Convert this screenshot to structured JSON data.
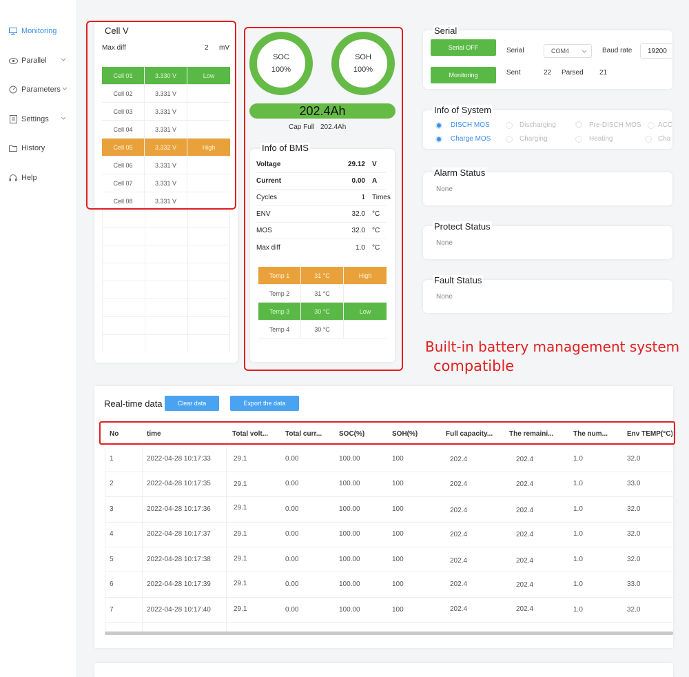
{
  "sidebar": {
    "items": [
      {
        "label": "Monitoring",
        "icon": "monitor-icon",
        "active": true
      },
      {
        "label": "Parallel",
        "icon": "eye-icon",
        "chevron": true
      },
      {
        "label": "Parameters",
        "icon": "gauge-icon",
        "chevron": true
      },
      {
        "label": "Settings",
        "icon": "document-icon",
        "chevron": true
      },
      {
        "label": "History",
        "icon": "folder-icon"
      },
      {
        "label": "Help",
        "icon": "headset-icon"
      }
    ]
  },
  "cellv": {
    "title": "Cell V",
    "maxdiff_label": "Max diff",
    "maxdiff_value": "2",
    "maxdiff_unit": "mV",
    "cells": [
      {
        "name": "Cell 01",
        "voltage": "3.330 V",
        "flag": "Low",
        "color": "#5ab946"
      },
      {
        "name": "Cell 02",
        "voltage": "3.331 V",
        "flag": ""
      },
      {
        "name": "Cell 03",
        "voltage": "3.331 V",
        "flag": ""
      },
      {
        "name": "Cell 04",
        "voltage": "3.331 V",
        "flag": ""
      },
      {
        "name": "Cell 05",
        "voltage": "3.332 V",
        "flag": "High",
        "color": "#e9a23b"
      },
      {
        "name": "Cell 06",
        "voltage": "3.331 V",
        "flag": ""
      },
      {
        "name": "Cell 07",
        "voltage": "3.331 V",
        "flag": ""
      },
      {
        "name": "Cell 08",
        "voltage": "3.331 V",
        "flag": ""
      }
    ]
  },
  "gauges": {
    "soc_label": "SOC",
    "soc_value": "100%",
    "soh_label": "SOH",
    "soh_value": "100%"
  },
  "capacity": {
    "value": "202.4Ah",
    "full_label": "Cap Full",
    "full_value": "202.4Ah"
  },
  "bms": {
    "title": "Info of BMS",
    "rows": [
      {
        "label": "Voltage",
        "value": "29.12",
        "unit": "V",
        "bold": true
      },
      {
        "label": "Current",
        "value": "0.00",
        "unit": "A",
        "bold": true
      },
      {
        "label": "Cycles",
        "value": "1",
        "unit": "Times"
      },
      {
        "label": "ENV",
        "value": "32.0",
        "unit": "°C"
      },
      {
        "label": "MOS",
        "value": "32.0",
        "unit": "°C"
      },
      {
        "label": "Max diff",
        "value": "1.0",
        "unit": "°C"
      }
    ],
    "temps": [
      {
        "name": "Temp 1",
        "value": "31 °C",
        "flag": "High"
      },
      {
        "name": "Temp 2",
        "value": "31 °C",
        "flag": ""
      },
      {
        "name": "Temp 3",
        "value": "30 °C",
        "flag": "Low"
      },
      {
        "name": "Temp 4",
        "value": "30 °C",
        "flag": ""
      }
    ]
  },
  "serial": {
    "title": "Serial",
    "serial_off_label": "Serial OFF",
    "monitoring_label": "Monitoring",
    "serial_label": "Serial",
    "port_value": "COM4",
    "baud_label": "Baud rate",
    "baud_value": "19200",
    "sent_label": "Sent",
    "sent_value": "22",
    "parsed_label": "Parsed",
    "parsed_value": "21"
  },
  "system": {
    "title": "Info of System",
    "row1": [
      "DISCH MOS",
      "Discharging",
      "Pre-DISCH MOS",
      "ACC"
    ],
    "row2": [
      "Charge MOS",
      "Charging",
      "Heating",
      "Cha"
    ]
  },
  "alarm": {
    "title": "Alarm Status",
    "value": "None"
  },
  "protect": {
    "title": "Protect Status",
    "value": "None"
  },
  "fault": {
    "title": "Fault Status",
    "value": "None"
  },
  "annotation": {
    "line1": "Built-in battery management system",
    "line2": "compatible"
  },
  "realtime": {
    "title": "Real-time data",
    "clear_label": "Clear data",
    "export_label": "Export the data",
    "headers": [
      "No",
      "time",
      "Total volt...",
      "Total curr...",
      "SOC(%)",
      "SOH(%)",
      "Full capacity...",
      "The remaini...",
      "The num...",
      "Env TEMP(°C)"
    ],
    "rows": [
      [
        "1",
        "2022-04-28 10:17:33",
        "29.1",
        "0.00",
        "100.00",
        "100",
        "202.4",
        "202.4",
        "1.0",
        "32.0"
      ],
      [
        "2",
        "2022-04-28 10:17:35",
        "29.1",
        "0.00",
        "100.00",
        "100",
        "202.4",
        "202.4",
        "1.0",
        "33.0"
      ],
      [
        "3",
        "2022-04-28 10:17:36",
        "29.1",
        "0.00",
        "100.00",
        "100",
        "202.4",
        "202.4",
        "1.0",
        "32.0"
      ],
      [
        "4",
        "2022-04-28 10:17:37",
        "29.1",
        "0.00",
        "100.00",
        "100",
        "202.4",
        "202.4",
        "1.0",
        "32.0"
      ],
      [
        "5",
        "2022-04-28 10:17:38",
        "29.1",
        "0.00",
        "100.00",
        "100",
        "202.4",
        "202.4",
        "1.0",
        "32.0"
      ],
      [
        "6",
        "2022-04-28 10:17:39",
        "29.1",
        "0.00",
        "100.00",
        "100",
        "202.4",
        "202.4",
        "1.0",
        "33.0"
      ],
      [
        "7",
        "2022-04-28 10:17:40",
        "29.1",
        "0.00",
        "100.00",
        "100",
        "202.4",
        "202.4",
        "1.0",
        "32.0"
      ]
    ]
  }
}
